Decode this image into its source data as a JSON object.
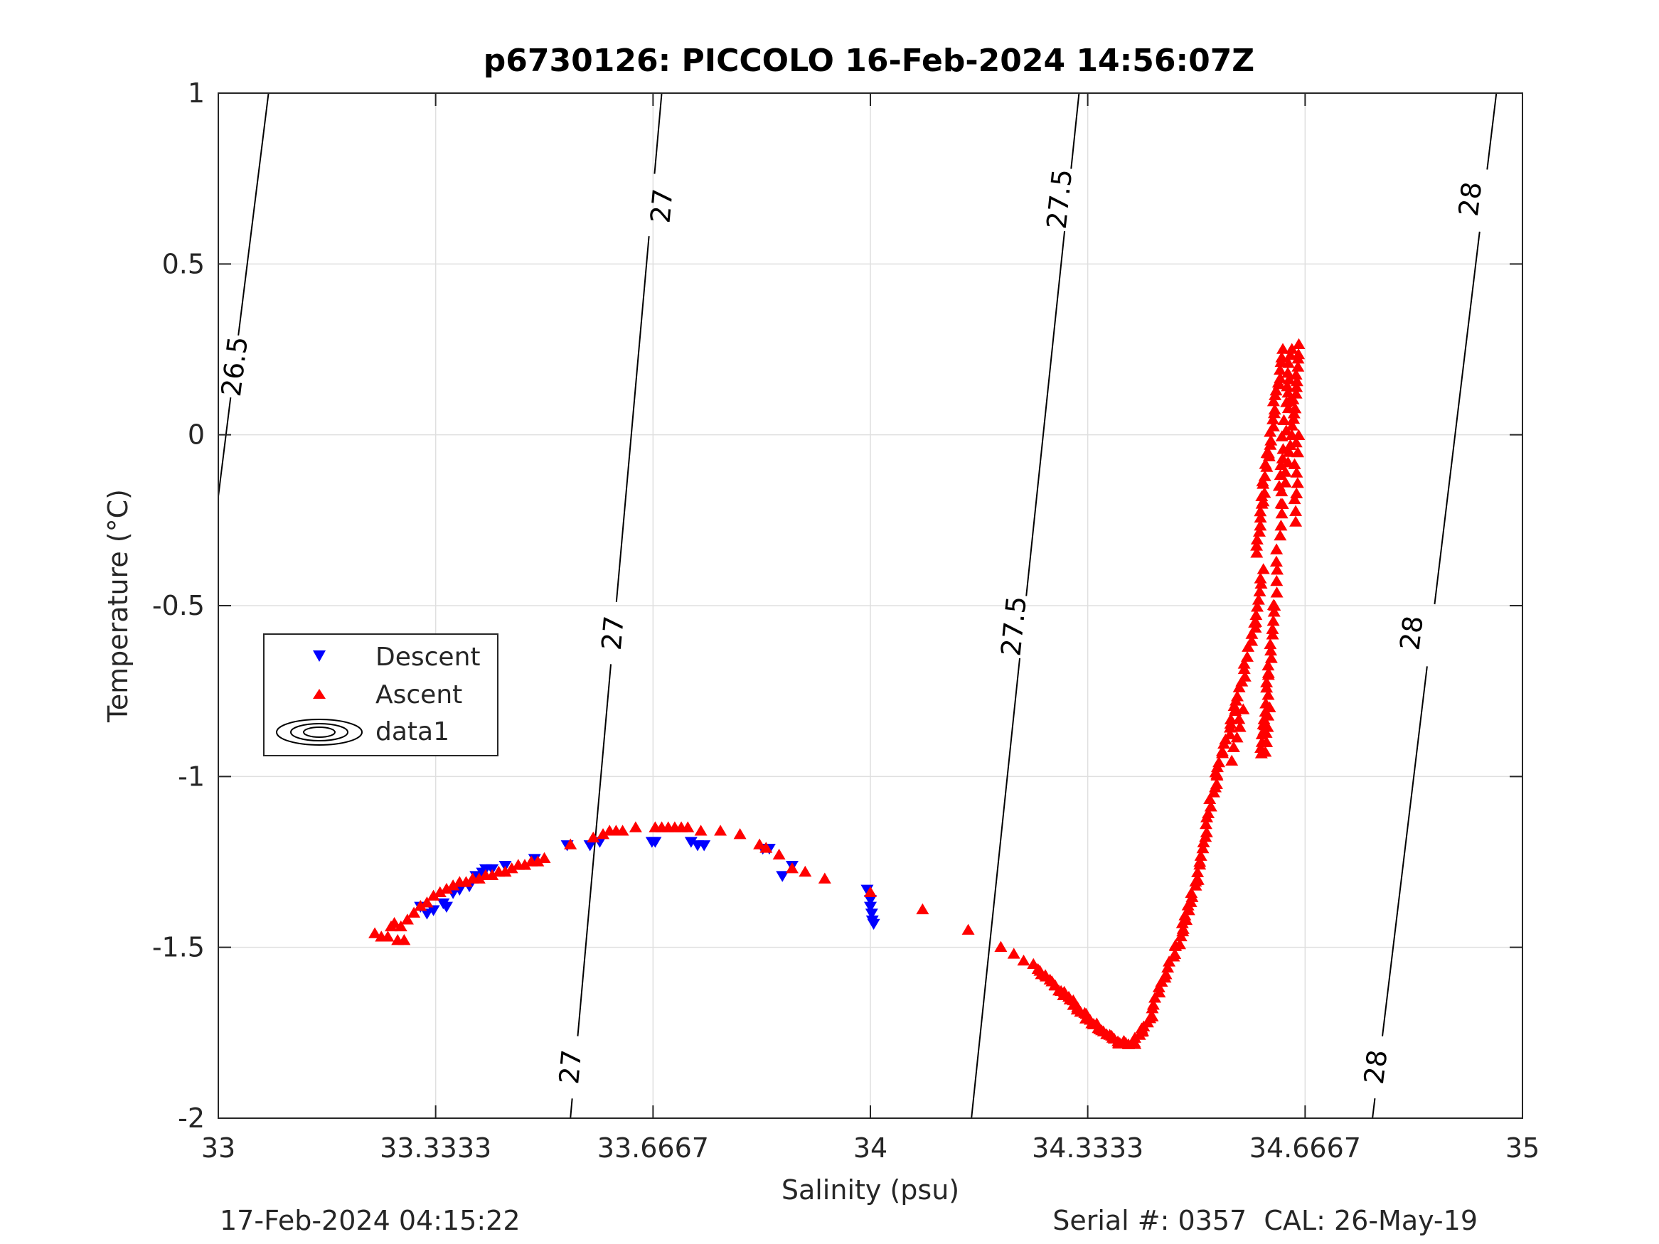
{
  "chart_data": {
    "type": "scatter",
    "title": "p6730126: PICCOLO 16-Feb-2024 14:56:07Z",
    "xlabel": "Salinity (psu)",
    "ylabel": "Temperature (°C)",
    "xlim": [
      33,
      35
    ],
    "ylim": [
      -2,
      1
    ],
    "x_ticks": [
      33,
      33.3333,
      33.6667,
      34,
      34.3333,
      34.6667,
      35
    ],
    "x_tick_labels": [
      "33",
      "33.3333",
      "33.6667",
      "34",
      "34.3333",
      "34.6667",
      "35"
    ],
    "y_ticks": [
      -2,
      -1.5,
      -1,
      -0.5,
      0,
      0.5,
      1
    ],
    "y_tick_labels": [
      "-2",
      "-1.5",
      "-1",
      "-0.5",
      "0",
      "0.5",
      "1"
    ],
    "grid": true,
    "legend_position": "left-middle",
    "legend": [
      "Descent",
      "Ascent",
      "data1"
    ],
    "footer_left": "17-Feb-2024 04:15:22",
    "footer_right": "Serial #: 0357  CAL: 26-May-19",
    "series": [
      {
        "name": "Descent",
        "marker": "triangle-down",
        "color": "#0000ff",
        "points": [
          [
            33.31,
            -1.38
          ],
          [
            33.32,
            -1.4
          ],
          [
            33.33,
            -1.39
          ],
          [
            33.345,
            -1.37
          ],
          [
            33.35,
            -1.38
          ],
          [
            33.36,
            -1.34
          ],
          [
            33.37,
            -1.33
          ],
          [
            33.385,
            -1.32
          ],
          [
            33.395,
            -1.29
          ],
          [
            33.405,
            -1.28
          ],
          [
            33.41,
            -1.27
          ],
          [
            33.42,
            -1.27
          ],
          [
            33.44,
            -1.26
          ],
          [
            33.485,
            -1.24
          ],
          [
            33.535,
            -1.2
          ],
          [
            33.57,
            -1.2
          ],
          [
            33.585,
            -1.19
          ],
          [
            33.665,
            -1.19
          ],
          [
            33.67,
            -1.19
          ],
          [
            33.725,
            -1.19
          ],
          [
            33.735,
            -1.2
          ],
          [
            33.745,
            -1.2
          ],
          [
            33.835,
            -1.21
          ],
          [
            33.845,
            -1.21
          ],
          [
            33.865,
            -1.29
          ],
          [
            33.88,
            -1.26
          ],
          [
            33.995,
            -1.33
          ],
          [
            34.0,
            -1.36
          ],
          [
            34.0,
            -1.38
          ],
          [
            34.002,
            -1.4
          ],
          [
            34.003,
            -1.42
          ],
          [
            34.005,
            -1.43
          ]
        ]
      },
      {
        "name": "Ascent",
        "marker": "triangle-up",
        "color": "#ff0000",
        "groups": [
          {
            "jitter": 0.004,
            "points": [
              [
                33.24,
                -1.46
              ],
              [
                33.25,
                -1.47
              ],
              [
                33.26,
                -1.47
              ],
              [
                33.265,
                -1.44
              ],
              [
                33.27,
                -1.43
              ],
              [
                33.275,
                -1.48
              ],
              [
                33.28,
                -1.44
              ],
              [
                33.285,
                -1.48
              ],
              [
                33.29,
                -1.42
              ],
              [
                33.3,
                -1.4
              ],
              [
                33.31,
                -1.38
              ],
              [
                33.32,
                -1.37
              ],
              [
                33.33,
                -1.35
              ],
              [
                33.34,
                -1.34
              ],
              [
                33.35,
                -1.33
              ],
              [
                33.36,
                -1.32
              ],
              [
                33.37,
                -1.31
              ],
              [
                33.38,
                -1.31
              ],
              [
                33.39,
                -1.3
              ],
              [
                33.4,
                -1.3
              ],
              [
                33.41,
                -1.29
              ],
              [
                33.42,
                -1.29
              ],
              [
                33.43,
                -1.28
              ],
              [
                33.44,
                -1.28
              ],
              [
                33.45,
                -1.27
              ],
              [
                33.46,
                -1.26
              ],
              [
                33.47,
                -1.26
              ],
              [
                33.48,
                -1.25
              ],
              [
                33.49,
                -1.25
              ],
              [
                33.5,
                -1.24
              ],
              [
                33.54,
                -1.2
              ],
              [
                33.575,
                -1.18
              ],
              [
                33.59,
                -1.17
              ],
              [
                33.6,
                -1.16
              ],
              [
                33.61,
                -1.16
              ],
              [
                33.62,
                -1.16
              ],
              [
                33.64,
                -1.15
              ],
              [
                33.67,
                -1.15
              ],
              [
                33.68,
                -1.15
              ],
              [
                33.69,
                -1.15
              ],
              [
                33.7,
                -1.15
              ],
              [
                33.71,
                -1.15
              ],
              [
                33.72,
                -1.15
              ],
              [
                33.74,
                -1.16
              ],
              [
                33.77,
                -1.16
              ],
              [
                33.8,
                -1.17
              ],
              [
                33.83,
                -1.2
              ],
              [
                33.84,
                -1.21
              ],
              [
                33.86,
                -1.23
              ],
              [
                33.88,
                -1.27
              ],
              [
                33.9,
                -1.28
              ],
              [
                33.93,
                -1.3
              ],
              [
                34.0,
                -1.34
              ],
              [
                34.08,
                -1.39
              ],
              [
                34.15,
                -1.45
              ],
              [
                34.2,
                -1.5
              ],
              [
                34.22,
                -1.52
              ],
              [
                34.235,
                -1.54
              ],
              [
                34.25,
                -1.55
              ],
              [
                34.26,
                -1.57
              ]
            ]
          },
          {
            "jitter": 0.006,
            "lines": [
              {
                "from": [
                  34.26,
                  -1.57
                ],
                "to": [
                  34.34,
                  -1.72
                ],
                "n": 24
              },
              {
                "from": [
                  34.34,
                  -1.72
                ],
                "to": [
                  34.38,
                  -1.78
                ],
                "n": 14
              },
              {
                "from": [
                  34.38,
                  -1.78
                ],
                "to": [
                  34.405,
                  -1.78
                ],
                "n": 8
              },
              {
                "from": [
                  34.405,
                  -1.78
                ],
                "to": [
                  34.43,
                  -1.7
                ],
                "n": 10
              },
              {
                "from": [
                  34.43,
                  -1.7
                ],
                "to": [
                  34.47,
                  -1.5
                ],
                "n": 14
              },
              {
                "from": [
                  34.47,
                  -1.5
                ],
                "to": [
                  34.5,
                  -1.3
                ],
                "n": 16
              },
              {
                "from": [
                  34.5,
                  -1.3
                ],
                "to": [
                  34.53,
                  -1.0
                ],
                "n": 18
              },
              {
                "from": [
                  34.53,
                  -1.0
                ],
                "to": [
                  34.56,
                  -0.8
                ],
                "n": 14
              },
              {
                "from": [
                  34.56,
                  -0.8
                ],
                "to": [
                  34.59,
                  -0.55
                ],
                "n": 14
              },
              {
                "from": [
                  34.59,
                  -0.55
                ],
                "to": [
                  34.6,
                  -0.4
                ],
                "n": 8
              },
              {
                "from": [
                  34.555,
                  -0.95
                ],
                "to": [
                  34.57,
                  -0.8
                ],
                "n": 6
              },
              {
                "from": [
                  34.59,
                  -0.35
                ],
                "to": [
                  34.6,
                  -0.2
                ],
                "n": 8
              },
              {
                "from": [
                  34.6,
                  -0.2
                ],
                "to": [
                  34.61,
                  -0.05
                ],
                "n": 10
              },
              {
                "from": [
                  34.61,
                  -0.05
                ],
                "to": [
                  34.625,
                  0.15
                ],
                "n": 12
              },
              {
                "from": [
                  34.625,
                  0.15
                ],
                "to": [
                  34.63,
                  0.25
                ],
                "n": 6
              },
              {
                "from": [
                  34.625,
                  -0.15
                ],
                "to": [
                  34.64,
                  0.1
                ],
                "n": 10
              },
              {
                "from": [
                  34.64,
                  0.1
                ],
                "to": [
                  34.645,
                  0.25
                ],
                "n": 8
              },
              {
                "from": [
                  34.645,
                  0.0
                ],
                "to": [
                  34.66,
                  0.26
                ],
                "n": 14
              },
              {
                "from": [
                  34.65,
                  -0.25
                ],
                "to": [
                  34.655,
                  0.0
                ],
                "n": 10
              },
              {
                "from": [
                  34.63,
                  -0.2
                ],
                "to": [
                  34.645,
                  0.0
                ],
                "n": 8
              },
              {
                "from": [
                  34.63,
                  -0.2
                ],
                "to": [
                  34.62,
                  -0.5
                ],
                "n": 10
              },
              {
                "from": [
                  34.62,
                  -0.5
                ],
                "to": [
                  34.61,
                  -0.7
                ],
                "n": 10
              },
              {
                "from": [
                  34.61,
                  -0.7
                ],
                "to": [
                  34.605,
                  -0.85
                ],
                "n": 8
              },
              {
                "from": [
                  34.605,
                  -0.85
                ],
                "to": [
                  34.6,
                  -0.93
                ],
                "n": 6
              },
              {
                "from": [
                  34.605,
                  -0.93
                ],
                "to": [
                  34.61,
                  -0.8
                ],
                "n": 6
              }
            ]
          }
        ]
      }
    ],
    "contours": [
      {
        "label": "26.5",
        "line": [
          [
            33.0,
            -0.18
          ],
          [
            33.077,
            1.0
          ]
        ],
        "label_pos": [
          [
            33.025,
            0.2
          ]
        ]
      },
      {
        "label": "27",
        "line": [
          [
            33.54,
            -2.0
          ],
          [
            33.68,
            1.0
          ]
        ],
        "label_pos": [
          [
            33.54,
            -1.85
          ],
          [
            33.605,
            -0.58
          ],
          [
            33.68,
            0.67
          ]
        ]
      },
      {
        "label": "27.5",
        "line": [
          [
            34.155,
            -2.0
          ],
          [
            34.32,
            1.0
          ]
        ],
        "label_pos": [
          [
            34.22,
            -0.56
          ],
          [
            34.29,
            0.69
          ]
        ]
      },
      {
        "label": "28",
        "line": [
          [
            34.77,
            -2.0
          ],
          [
            34.96,
            1.0
          ]
        ],
        "label_pos": [
          [
            34.775,
            -1.85
          ],
          [
            34.83,
            -0.58
          ],
          [
            34.92,
            0.69
          ]
        ]
      }
    ]
  }
}
